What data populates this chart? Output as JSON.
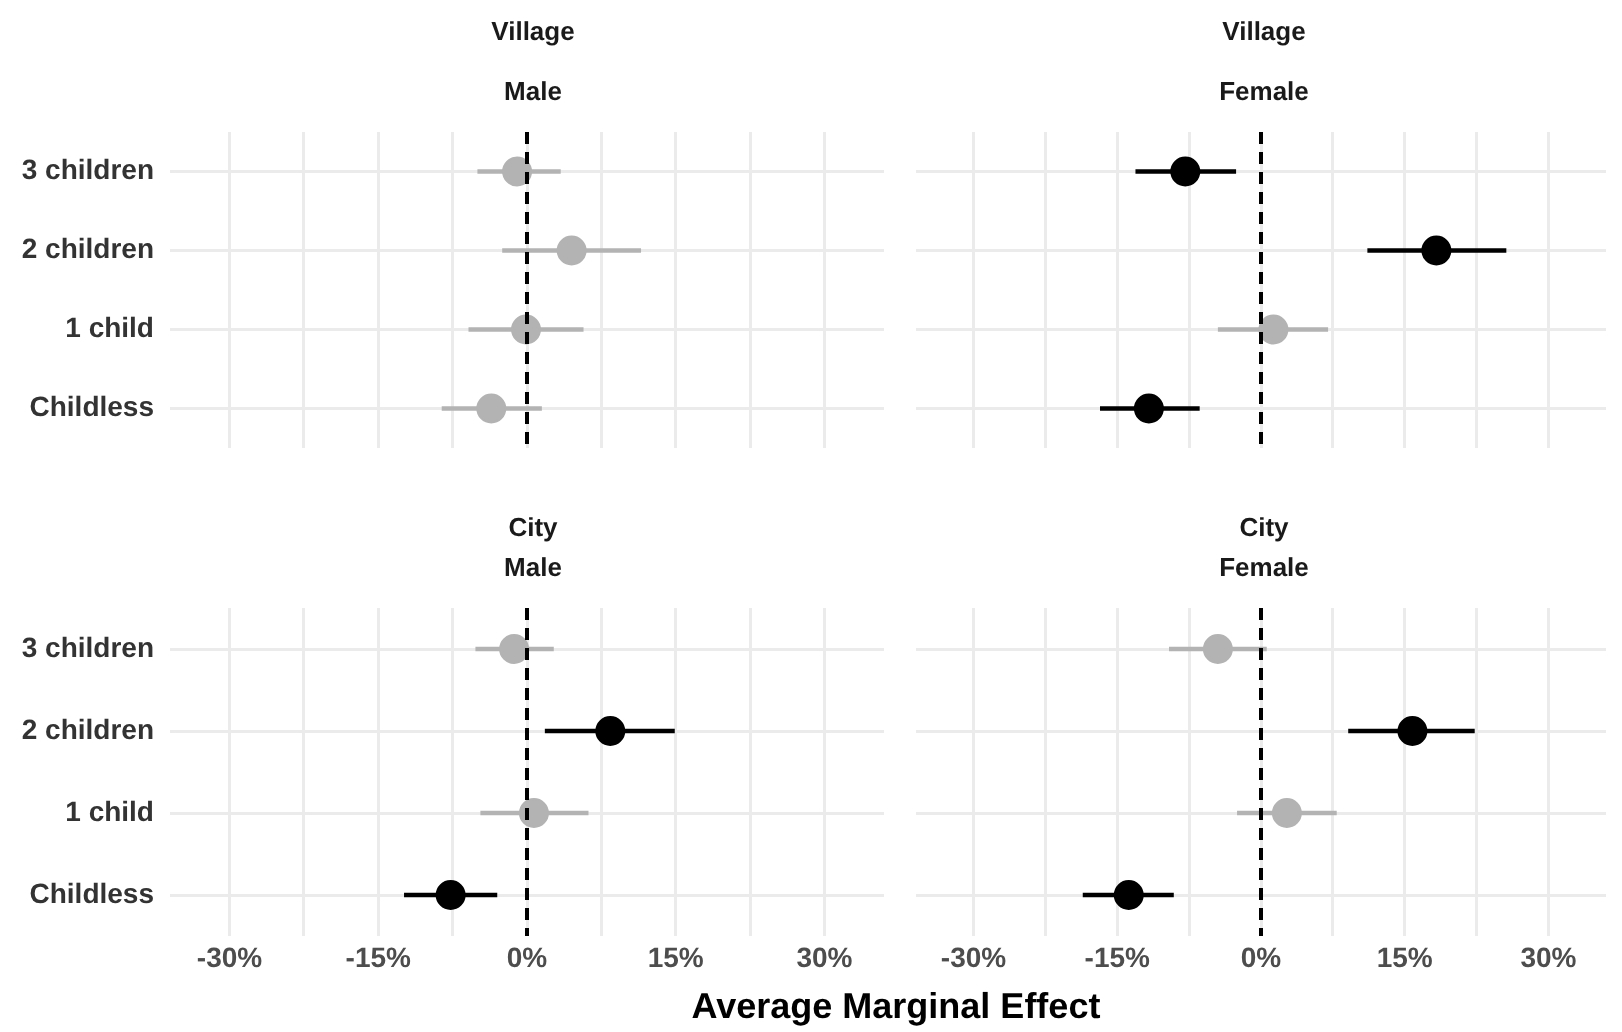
{
  "chart_data": [
    {
      "type": "scatter",
      "title": "Village",
      "subtitle": "Male",
      "orientation": "horizontal",
      "categories": [
        "3 children",
        "2 children",
        "1 child",
        "Childless"
      ],
      "values": [
        -1.0,
        4.5,
        -0.1,
        -3.6
      ],
      "colors": [
        "#b3b3b3",
        "#b3b3b3",
        "#b3b3b3",
        "#b3b3b3"
      ],
      "errors": [
        [
          -5.0,
          3.4
        ],
        [
          -2.5,
          11.5
        ],
        [
          -5.9,
          5.7
        ],
        [
          -8.6,
          1.5
        ]
      ],
      "xlim": [
        -36,
        36
      ],
      "xticks": [
        {
          "value": -30,
          "label": null
        },
        {
          "value": -22.5,
          "label": null
        },
        {
          "value": -15,
          "label": null
        },
        {
          "value": -7.5,
          "label": null
        },
        {
          "value": 0,
          "label": null
        },
        {
          "value": 7.5,
          "label": null
        },
        {
          "value": 15,
          "label": null
        },
        {
          "value": 22.5,
          "label": null
        },
        {
          "value": 30,
          "label": null
        }
      ],
      "ref_lines": [
        {
          "axis": "x",
          "value": 0,
          "color": "#000000",
          "line_style": "dashed"
        }
      ],
      "grid": true,
      "legend": false,
      "marker": "circle",
      "tick_labels": "y"
    },
    {
      "type": "scatter",
      "title": "Village",
      "subtitle": "Female",
      "orientation": "horizontal",
      "categories": [
        null,
        null,
        null,
        null
      ],
      "values": [
        -7.9,
        18.3,
        1.3,
        -11.7
      ],
      "colors": [
        "#000000",
        "#000000",
        "#b3b3b3",
        "#000000"
      ],
      "errors": [
        [
          -13.1,
          -2.6
        ],
        [
          11.1,
          25.6
        ],
        [
          -4.5,
          7.0
        ],
        [
          -16.8,
          -6.4
        ]
      ],
      "xlim": [
        -36,
        36
      ],
      "xticks": [
        {
          "value": -30,
          "label": null
        },
        {
          "value": -22.5,
          "label": null
        },
        {
          "value": -15,
          "label": null
        },
        {
          "value": -7.5,
          "label": null
        },
        {
          "value": 0,
          "label": null
        },
        {
          "value": 7.5,
          "label": null
        },
        {
          "value": 15,
          "label": null
        },
        {
          "value": 22.5,
          "label": null
        },
        {
          "value": 30,
          "label": null
        }
      ],
      "ref_lines": [
        {
          "axis": "x",
          "value": 0,
          "color": "#000000",
          "line_style": "dashed"
        }
      ],
      "grid": true,
      "legend": false,
      "marker": "circle",
      "tick_labels": false
    },
    {
      "type": "scatter",
      "title": "City",
      "subtitle": "Male",
      "xlabel": "Average Marginal Effect",
      "orientation": "horizontal",
      "categories": [
        "3 children",
        "2 children",
        "1 child",
        "Childless"
      ],
      "values": [
        -1.3,
        8.4,
        0.7,
        -7.7
      ],
      "colors": [
        "#b3b3b3",
        "#000000",
        "#b3b3b3",
        "#000000"
      ],
      "errors": [
        [
          -5.2,
          2.7
        ],
        [
          1.8,
          14.9
        ],
        [
          -4.7,
          6.2
        ],
        [
          -12.4,
          -3.0
        ]
      ],
      "xlim": [
        -36,
        36
      ],
      "xticks": [
        {
          "value": -30,
          "label": "-30%"
        },
        {
          "value": -22.5,
          "label": null
        },
        {
          "value": -15,
          "label": "-15%"
        },
        {
          "value": -7.5,
          "label": null
        },
        {
          "value": 0,
          "label": "0%"
        },
        {
          "value": 7.5,
          "label": null
        },
        {
          "value": 15,
          "label": "15%"
        },
        {
          "value": 22.5,
          "label": null
        },
        {
          "value": 30,
          "label": "30%"
        }
      ],
      "ref_lines": [
        {
          "axis": "x",
          "value": 0,
          "color": "#000000",
          "line_style": "dashed"
        }
      ],
      "grid": true,
      "legend": false,
      "marker": "circle"
    },
    {
      "type": "scatter",
      "title": "City",
      "subtitle": "Female",
      "orientation": "horizontal",
      "categories": [
        null,
        null,
        null,
        null
      ],
      "values": [
        -4.5,
        15.8,
        2.7,
        -13.8
      ],
      "colors": [
        "#b3b3b3",
        "#000000",
        "#b3b3b3",
        "#000000"
      ],
      "errors": [
        [
          -9.6,
          0.6
        ],
        [
          9.1,
          22.3
        ],
        [
          -2.5,
          7.9
        ],
        [
          -18.6,
          -9.1
        ]
      ],
      "xlim": [
        -36,
        36
      ],
      "xticks": [
        {
          "value": -30,
          "label": "-30%"
        },
        {
          "value": -22.5,
          "label": null
        },
        {
          "value": -15,
          "label": "-15%"
        },
        {
          "value": -7.5,
          "label": null
        },
        {
          "value": 0,
          "label": "0%"
        },
        {
          "value": 7.5,
          "label": null
        },
        {
          "value": 15,
          "label": "15%"
        },
        {
          "value": 22.5,
          "label": null
        },
        {
          "value": 30,
          "label": "30%"
        }
      ],
      "ref_lines": [
        {
          "axis": "x",
          "value": 0,
          "color": "#000000",
          "line_style": "dashed"
        }
      ],
      "grid": true,
      "legend": false,
      "marker": "circle",
      "tick_labels": "x"
    }
  ]
}
